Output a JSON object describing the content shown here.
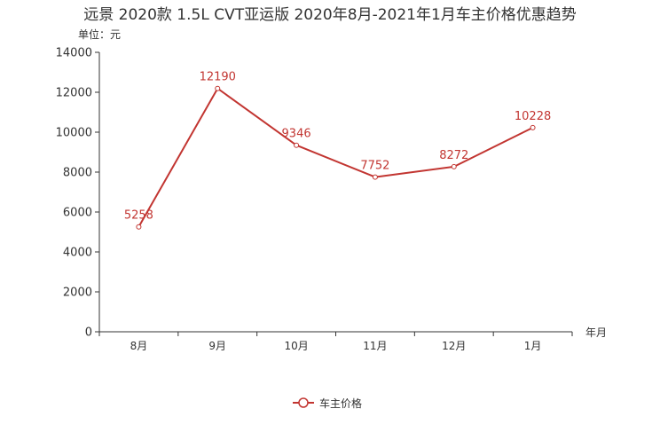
{
  "chart_data": {
    "type": "line",
    "title": "远景 2020款 1.5L CVT亚运版 2020年8月-2021年1月车主价格优惠趋势",
    "ylabel": "单位：元",
    "xlabel": "年月",
    "categories": [
      "8月",
      "9月",
      "10月",
      "11月",
      "12月",
      "1月"
    ],
    "series": [
      {
        "name": "车主价格",
        "values": [
          5258,
          12190,
          9346,
          7752,
          8272,
          10228
        ]
      }
    ],
    "ylim": [
      0,
      14000
    ],
    "yticks": [
      0,
      2000,
      4000,
      6000,
      8000,
      10000,
      12000,
      14000
    ],
    "grid": false,
    "legend_position": "bottom-center",
    "colors": {
      "series": "#c23531",
      "axis": "#333333",
      "text": "#333333"
    }
  }
}
